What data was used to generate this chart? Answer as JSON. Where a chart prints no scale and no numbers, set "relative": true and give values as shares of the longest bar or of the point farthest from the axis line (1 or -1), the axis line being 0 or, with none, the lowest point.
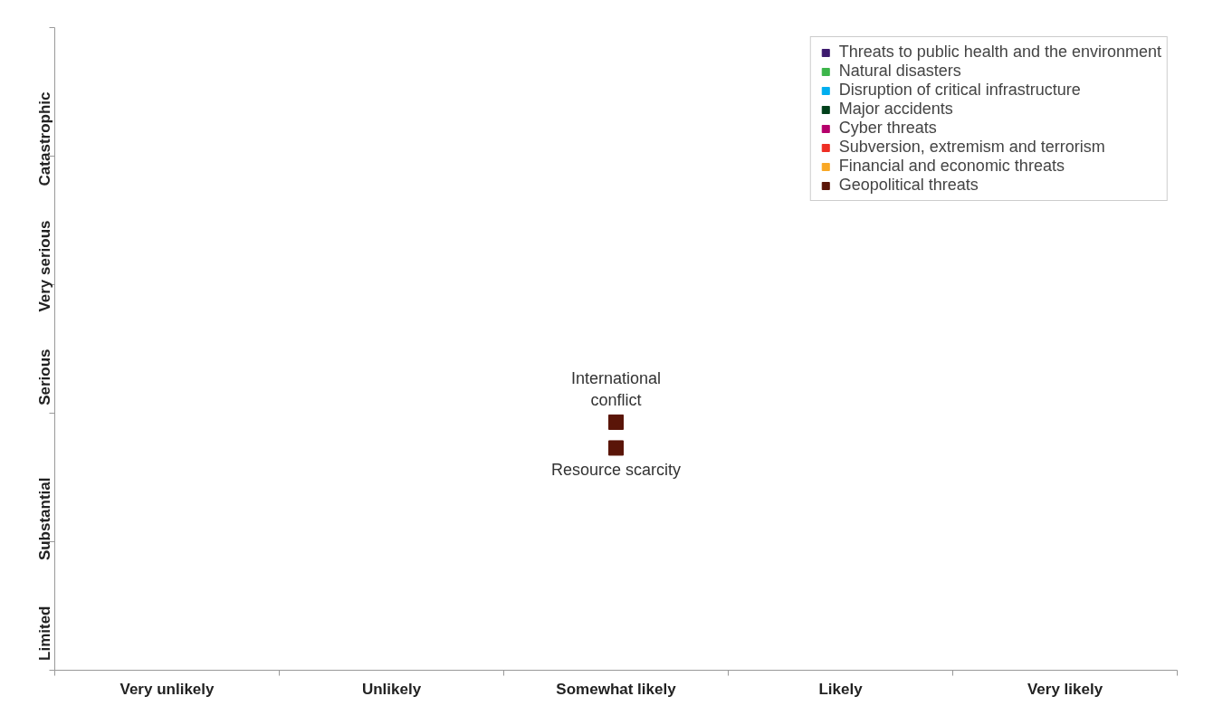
{
  "chart_data": {
    "type": "scatter",
    "marker": "square",
    "legend": "top right",
    "grid": false,
    "categories": [
      "Very unlikely",
      "Unlikely",
      "Somewhat likely",
      "Likely",
      "Very likely"
    ],
    "y_categories": [
      "Catastrophic",
      "Very serious",
      "Serious",
      "Substantial",
      "Limited"
    ],
    "relative": true,
    "series": [
      {
        "name": "Threats to public health and the environment",
        "color": "#3d1a6e",
        "values": [
          null,
          null,
          null,
          null,
          null
        ]
      },
      {
        "name": "Natural disasters",
        "color": "#3cb54a",
        "values": [
          null,
          null,
          null,
          null,
          null
        ]
      },
      {
        "name": "Disruption of critical infrastructure",
        "color": "#00aeef",
        "values": [
          null,
          null,
          null,
          null,
          null
        ]
      },
      {
        "name": "Major accidents",
        "color": "#00401a",
        "values": [
          null,
          null,
          null,
          null,
          null
        ]
      },
      {
        "name": "Cyber threats",
        "color": "#b5006b",
        "values": [
          null,
          null,
          null,
          null,
          null
        ]
      },
      {
        "name": "Subversion, extremism and terrorism",
        "color": "#ee2e24",
        "values": [
          null,
          null,
          null,
          null,
          null
        ]
      },
      {
        "name": "Financial and economic threats",
        "color": "#f9a825",
        "values": [
          null,
          null,
          null,
          null,
          null
        ]
      },
      {
        "name": "Geopolitical threats",
        "color": "#5a1508",
        "x": [
          "Somewhat likely",
          "Somewhat likely"
        ],
        "values": [
          1,
          0.896
        ]
      }
    ],
    "annotations": [
      {
        "text": "International\nconflict",
        "x": "Somewhat likely",
        "y": 1
      },
      {
        "text": "Resource scarcity",
        "x": "Somewhat likely",
        "y": 0.896
      }
    ]
  }
}
